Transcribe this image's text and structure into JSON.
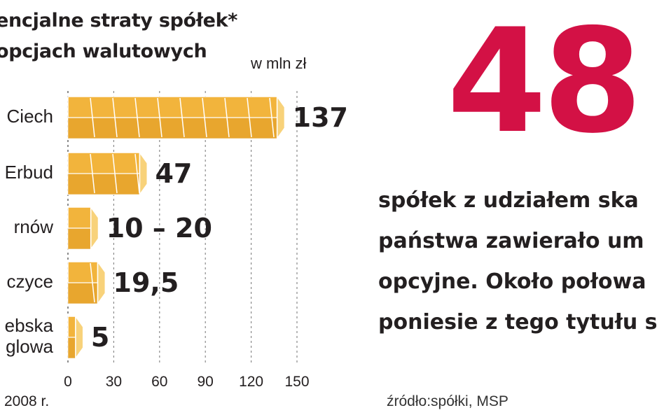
{
  "chart_data": {
    "type": "bar",
    "orientation": "horizontal",
    "title": "encjalne straty spółek*\nopcjach walutowych",
    "unit_label": "w mln zł",
    "categories": [
      "Ciech",
      "Erbud",
      "rnów",
      "czyce",
      "ebska\nglowa"
    ],
    "values": [
      137,
      47,
      15,
      19.5,
      5
    ],
    "value_labels": [
      "137",
      "47",
      "10 – 20",
      "19,5",
      "5"
    ],
    "xlim": [
      0,
      150
    ],
    "x_ticks": [
      "0",
      "30",
      "60",
      "90",
      "120",
      "150"
    ],
    "grid": true,
    "bar_color": "#f2b43c",
    "footnote": "2008 r."
  },
  "highlight": {
    "number": "48",
    "number_color": "#d31145",
    "text": "spółek z udziałem ska\npaństwa zawierało um\nopcyjne. Około połowa\nponiesie z tego tytułu s"
  },
  "source": "źródło:spółki, MSP"
}
